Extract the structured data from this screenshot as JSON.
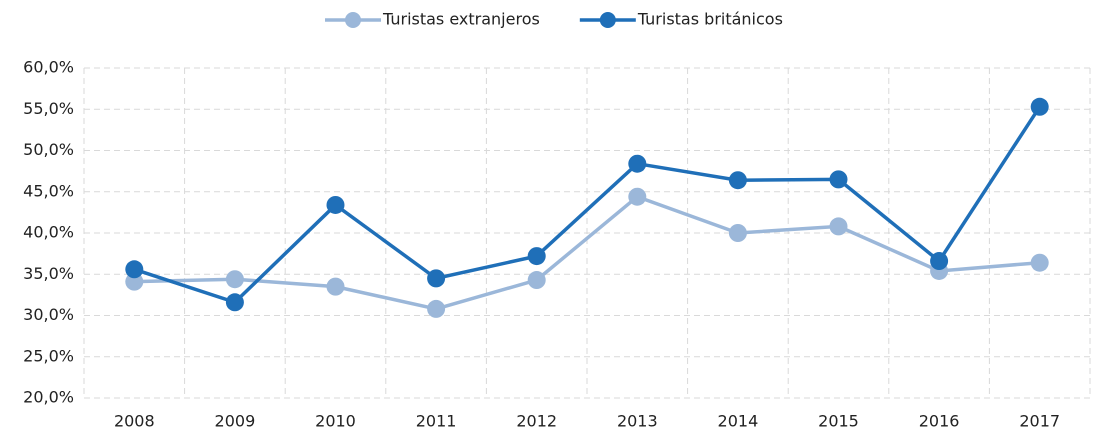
{
  "chart_data": {
    "type": "line",
    "categories": [
      "2008",
      "2009",
      "2010",
      "2011",
      "2012",
      "2013",
      "2014",
      "2015",
      "2016",
      "2017"
    ],
    "series": [
      {
        "name": "Turistas extranjeros",
        "color": "#9bb7d9",
        "values": [
          34.1,
          34.4,
          33.5,
          30.8,
          34.3,
          44.4,
          40.0,
          40.8,
          35.4,
          36.4
        ]
      },
      {
        "name": "Turistas británicos",
        "color": "#1f6fb8",
        "values": [
          35.6,
          31.6,
          43.4,
          34.5,
          37.2,
          48.4,
          46.4,
          46.5,
          36.6,
          55.3
        ]
      }
    ],
    "ylim": [
      20,
      60
    ],
    "yticks": [
      {
        "value": 20,
        "label": "20,0%"
      },
      {
        "value": 25,
        "label": "25,0%"
      },
      {
        "value": 30,
        "label": "30,0%"
      },
      {
        "value": 35,
        "label": "35,0%"
      },
      {
        "value": 40,
        "label": "40,0%"
      },
      {
        "value": 45,
        "label": "45,0%"
      },
      {
        "value": 50,
        "label": "50,0%"
      },
      {
        "value": 55,
        "label": "55,0%"
      },
      {
        "value": 60,
        "label": "60,0%"
      }
    ],
    "grid": true,
    "legend": "top"
  }
}
